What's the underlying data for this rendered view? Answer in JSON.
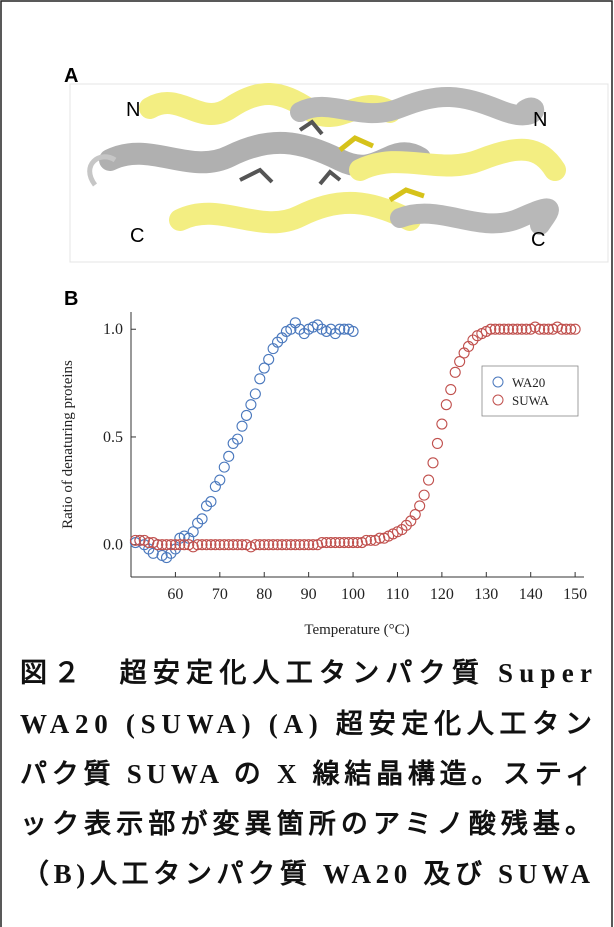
{
  "panel_a": {
    "label": "A",
    "end_labels": [
      "N",
      "N",
      "C",
      "C"
    ]
  },
  "panel_b": {
    "label": "B"
  },
  "chart_data": {
    "type": "scatter",
    "x_label": "Temperature (°C)",
    "y_label": "Ratio of denaturing proteins",
    "xlim": [
      50,
      152
    ],
    "ylim": [
      -0.15,
      1.08
    ],
    "xticks": [
      60,
      70,
      80,
      90,
      100,
      110,
      120,
      130,
      140,
      150
    ],
    "yticks": [
      {
        "value": 0,
        "label": "0.0"
      },
      {
        "value": 0.5,
        "label": "0.5"
      },
      {
        "value": 1,
        "label": "1.0"
      }
    ],
    "legend": "right",
    "series": [
      {
        "name": "WA20",
        "color": "#4a78bd",
        "x": [
          51,
          52,
          53,
          54,
          55,
          56,
          57,
          58,
          59,
          60,
          61,
          62,
          63,
          64,
          65,
          66,
          67,
          68,
          69,
          70,
          71,
          72,
          73,
          74,
          75,
          76,
          77,
          78,
          79,
          80,
          81,
          82,
          83,
          84,
          85,
          86,
          87,
          88,
          89,
          90,
          91,
          92,
          93,
          94,
          95,
          96,
          97,
          98,
          99,
          100
        ],
        "values": [
          0.01,
          0.02,
          0.0,
          -0.02,
          -0.04,
          0.0,
          -0.05,
          -0.06,
          -0.04,
          -0.02,
          0.03,
          0.04,
          0.03,
          0.06,
          0.1,
          0.12,
          0.18,
          0.2,
          0.27,
          0.3,
          0.36,
          0.41,
          0.47,
          0.49,
          0.55,
          0.6,
          0.65,
          0.7,
          0.77,
          0.82,
          0.86,
          0.91,
          0.94,
          0.96,
          0.99,
          1.0,
          1.03,
          1.0,
          0.98,
          1.0,
          1.01,
          1.02,
          1.0,
          0.99,
          1.0,
          0.98,
          1.0,
          1.0,
          1.0,
          0.99
        ]
      },
      {
        "name": "SUWA",
        "color": "#c0504d",
        "x": [
          51,
          52,
          53,
          54,
          55,
          56,
          57,
          58,
          59,
          60,
          61,
          62,
          63,
          64,
          65,
          66,
          67,
          68,
          69,
          70,
          71,
          72,
          73,
          74,
          75,
          76,
          77,
          78,
          79,
          80,
          81,
          82,
          83,
          84,
          85,
          86,
          87,
          88,
          89,
          90,
          91,
          92,
          93,
          94,
          95,
          96,
          97,
          98,
          99,
          100,
          101,
          102,
          103,
          104,
          105,
          106,
          107,
          108,
          109,
          110,
          111,
          112,
          113,
          114,
          115,
          116,
          117,
          118,
          119,
          120,
          121,
          122,
          123,
          124,
          125,
          126,
          127,
          128,
          129,
          130,
          131,
          132,
          133,
          134,
          135,
          136,
          137,
          138,
          139,
          140,
          141,
          142,
          143,
          144,
          145,
          146,
          147,
          148,
          149,
          150
        ],
        "values": [
          0.02,
          0.02,
          0.02,
          0.01,
          0.01,
          0.0,
          0.0,
          0.0,
          0.0,
          0.0,
          0.0,
          0.0,
          0.0,
          -0.01,
          0.0,
          0.0,
          0.0,
          0.0,
          0.0,
          0.0,
          0.0,
          0.0,
          0.0,
          0.0,
          0.0,
          0.0,
          -0.01,
          0.0,
          0.0,
          0.0,
          0.0,
          0.0,
          0.0,
          0.0,
          0.0,
          0.0,
          0.0,
          0.0,
          0.0,
          0.0,
          0.0,
          0.0,
          0.01,
          0.01,
          0.01,
          0.01,
          0.01,
          0.01,
          0.01,
          0.01,
          0.01,
          0.01,
          0.02,
          0.02,
          0.02,
          0.03,
          0.03,
          0.04,
          0.05,
          0.06,
          0.07,
          0.09,
          0.11,
          0.14,
          0.18,
          0.23,
          0.3,
          0.38,
          0.47,
          0.56,
          0.65,
          0.72,
          0.8,
          0.85,
          0.89,
          0.92,
          0.95,
          0.97,
          0.98,
          0.99,
          1.0,
          1.0,
          1.0,
          1.0,
          1.0,
          1.0,
          1.0,
          1.0,
          1.0,
          1.0,
          1.01,
          1.0,
          1.0,
          1.0,
          1.0,
          1.01,
          1.0,
          1.0,
          1.0,
          1.0
        ]
      }
    ]
  },
  "caption": [
    "図２　超安定化人工タンパク質 Super",
    "WA20 (SUWA) (A) 超安定化人工タン",
    "パク質 SUWA の X 線結晶構造。スティ",
    "ック表示部が変異箇所のアミノ酸残基。",
    "（B)人工タンパク質 WA20 及び SUWA"
  ]
}
